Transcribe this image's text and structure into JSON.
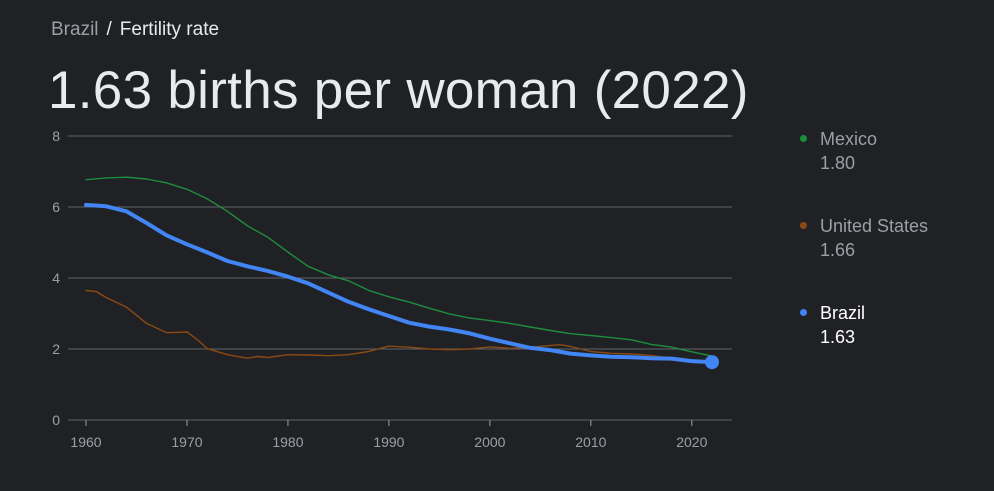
{
  "breadcrumb": {
    "parent": "Brazil",
    "separator": "/",
    "current": "Fertility rate"
  },
  "headline": "1.63 births per woman (2022)",
  "legend": [
    {
      "name": "Mexico",
      "value": "1.80",
      "color": "#1e8e3e",
      "active": false
    },
    {
      "name": "United States",
      "value": "1.66",
      "color": "#8a4a14",
      "active": false
    },
    {
      "name": "Brazil",
      "value": "1.63",
      "color": "#4285f4",
      "active": true
    }
  ],
  "chart_data": {
    "type": "line",
    "xlim": [
      1960,
      2022
    ],
    "ylim": [
      0,
      8
    ],
    "x_ticks": [
      "1960",
      "1970",
      "1980",
      "1990",
      "2000",
      "2010",
      "2020"
    ],
    "y_ticks": [
      "0",
      "2",
      "4",
      "6",
      "8"
    ],
    "grid": true,
    "legend_position": "right",
    "series": [
      {
        "name": "Mexico",
        "color": "#1e8e3e",
        "x": [
          1960,
          1962,
          1964,
          1966,
          1968,
          1970,
          1972,
          1974,
          1976,
          1978,
          1980,
          1982,
          1984,
          1986,
          1988,
          1990,
          1992,
          1994,
          1996,
          1998,
          2000,
          2002,
          2004,
          2006,
          2008,
          2010,
          2012,
          2014,
          2016,
          2018,
          2020,
          2022
        ],
        "y": [
          6.77,
          6.82,
          6.84,
          6.79,
          6.68,
          6.5,
          6.23,
          5.88,
          5.47,
          5.15,
          4.73,
          4.33,
          4.09,
          3.92,
          3.65,
          3.47,
          3.32,
          3.15,
          2.99,
          2.87,
          2.8,
          2.72,
          2.62,
          2.52,
          2.43,
          2.38,
          2.32,
          2.26,
          2.13,
          2.05,
          1.92,
          1.8
        ]
      },
      {
        "name": "United States",
        "color": "#8a4a14",
        "x": [
          1960,
          1961,
          1962,
          1964,
          1966,
          1968,
          1970,
          1971,
          1972,
          1974,
          1976,
          1977,
          1978,
          1980,
          1982,
          1984,
          1986,
          1988,
          1990,
          1992,
          1994,
          1996,
          1998,
          2000,
          2002,
          2004,
          2007,
          2008,
          2010,
          2012,
          2014,
          2016,
          2018,
          2020,
          2022
        ],
        "y": [
          3.65,
          3.62,
          3.45,
          3.18,
          2.72,
          2.46,
          2.48,
          2.27,
          2.01,
          1.84,
          1.74,
          1.79,
          1.76,
          1.84,
          1.83,
          1.81,
          1.84,
          1.93,
          2.08,
          2.05,
          2.0,
          1.98,
          2.0,
          2.06,
          2.02,
          2.05,
          2.12,
          2.07,
          1.93,
          1.88,
          1.86,
          1.82,
          1.73,
          1.64,
          1.66
        ]
      },
      {
        "name": "Brazil",
        "color": "#4285f4",
        "x": [
          1960,
          1962,
          1964,
          1966,
          1968,
          1970,
          1972,
          1974,
          1976,
          1978,
          1980,
          1982,
          1984,
          1986,
          1988,
          1990,
          1992,
          1994,
          1996,
          1998,
          2000,
          2002,
          2004,
          2006,
          2008,
          2010,
          2012,
          2014,
          2016,
          2018,
          2020,
          2022
        ],
        "y": [
          6.06,
          6.02,
          5.88,
          5.55,
          5.2,
          4.95,
          4.72,
          4.48,
          4.33,
          4.2,
          4.04,
          3.85,
          3.59,
          3.33,
          3.12,
          2.93,
          2.74,
          2.63,
          2.55,
          2.44,
          2.29,
          2.16,
          2.03,
          1.97,
          1.87,
          1.82,
          1.78,
          1.77,
          1.74,
          1.73,
          1.66,
          1.63
        ]
      }
    ]
  }
}
